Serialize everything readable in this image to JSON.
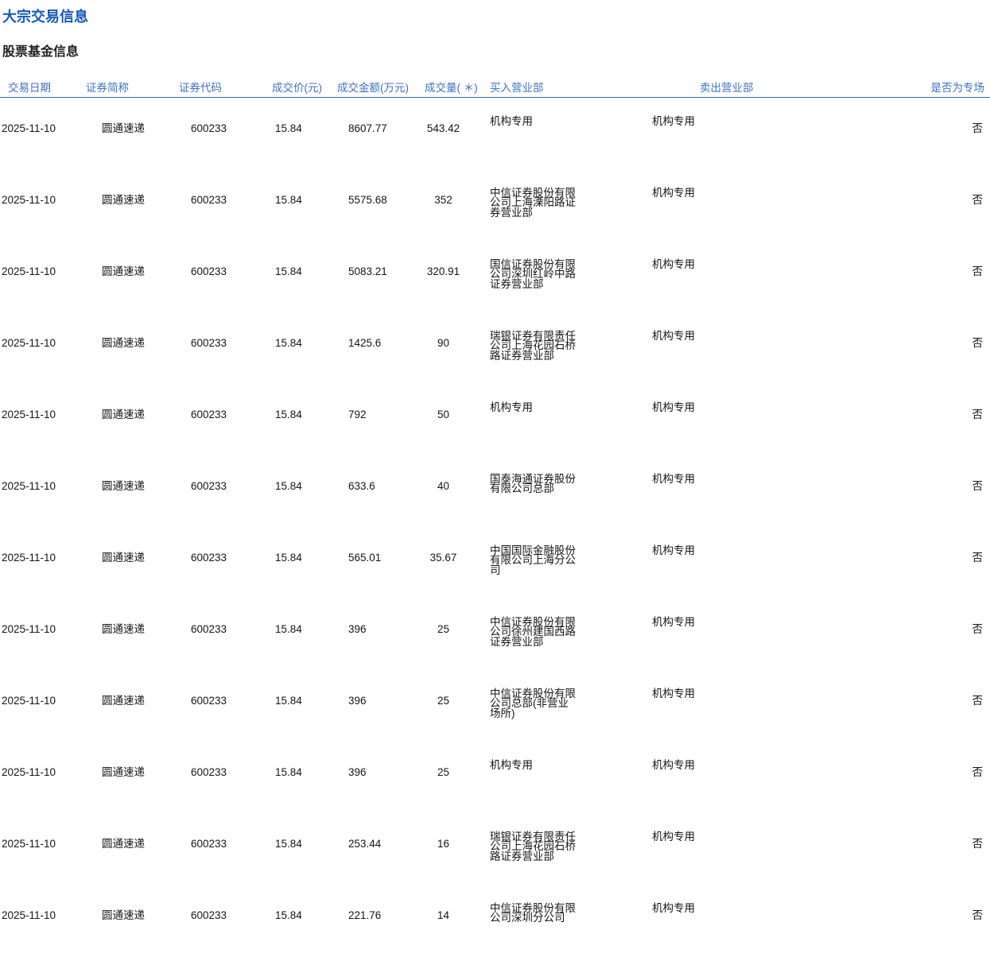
{
  "page": {
    "title": "大宗交易信息",
    "subtitle": "股票基金信息"
  },
  "colors": {
    "title_blue": "#1759b7",
    "header_blue": "#3e71c4",
    "line_blue": "#2e69bf",
    "body_text": "#151515"
  },
  "table": {
    "columns": [
      {
        "key": "date",
        "label": "交易日期"
      },
      {
        "key": "name",
        "label": "证券简称"
      },
      {
        "key": "code",
        "label": "证券代码"
      },
      {
        "key": "price",
        "label": "成交价(元)"
      },
      {
        "key": "amount",
        "label": "成交金额(万元)"
      },
      {
        "key": "volume",
        "label": "成交量( ＊)"
      },
      {
        "key": "buy_dept",
        "label": "买入营业部"
      },
      {
        "key": "sell_dept",
        "label": "卖出营业部"
      },
      {
        "key": "special",
        "label": "是否为专场"
      }
    ],
    "rows": [
      {
        "date": "2025-11-10",
        "name": "圆通速递",
        "code": "600233",
        "price": "15.84",
        "amount": "8607.77",
        "volume": "543.42",
        "buy_dept": "机构专用",
        "sell_dept": "机构专用",
        "special": "否"
      },
      {
        "date": "2025-11-10",
        "name": "圆通速递",
        "code": "600233",
        "price": "15.84",
        "amount": "5575.68",
        "volume": "352",
        "buy_dept": "中信证券股份有限公司上海溧阳路证券营业部",
        "sell_dept": "机构专用",
        "special": "否"
      },
      {
        "date": "2025-11-10",
        "name": "圆通速递",
        "code": "600233",
        "price": "15.84",
        "amount": "5083.21",
        "volume": "320.91",
        "buy_dept": "国信证券股份有限公司深圳红岭中路证券营业部",
        "sell_dept": "机构专用",
        "special": "否"
      },
      {
        "date": "2025-11-10",
        "name": "圆通速递",
        "code": "600233",
        "price": "15.84",
        "amount": "1425.6",
        "volume": "90",
        "buy_dept": "瑞银证券有限责任公司上海花园石桥路证券营业部",
        "sell_dept": "机构专用",
        "special": "否"
      },
      {
        "date": "2025-11-10",
        "name": "圆通速递",
        "code": "600233",
        "price": "15.84",
        "amount": "792",
        "volume": "50",
        "buy_dept": "机构专用",
        "sell_dept": "机构专用",
        "special": "否"
      },
      {
        "date": "2025-11-10",
        "name": "圆通速递",
        "code": "600233",
        "price": "15.84",
        "amount": "633.6",
        "volume": "40",
        "buy_dept": "国泰海通证券股份有限公司总部",
        "sell_dept": "机构专用",
        "special": "否"
      },
      {
        "date": "2025-11-10",
        "name": "圆通速递",
        "code": "600233",
        "price": "15.84",
        "amount": "565.01",
        "volume": "35.67",
        "buy_dept": "中国国际金融股份有限公司上海分公司",
        "sell_dept": "机构专用",
        "special": "否"
      },
      {
        "date": "2025-11-10",
        "name": "圆通速递",
        "code": "600233",
        "price": "15.84",
        "amount": "396",
        "volume": "25",
        "buy_dept": "中信证券股份有限公司徐州建国西路证券营业部",
        "sell_dept": "机构专用",
        "special": "否"
      },
      {
        "date": "2025-11-10",
        "name": "圆通速递",
        "code": "600233",
        "price": "15.84",
        "amount": "396",
        "volume": "25",
        "buy_dept": "中信证券股份有限公司总部(非营业场所)",
        "sell_dept": "机构专用",
        "special": "否"
      },
      {
        "date": "2025-11-10",
        "name": "圆通速递",
        "code": "600233",
        "price": "15.84",
        "amount": "396",
        "volume": "25",
        "buy_dept": "机构专用",
        "sell_dept": "机构专用",
        "special": "否"
      },
      {
        "date": "2025-11-10",
        "name": "圆通速递",
        "code": "600233",
        "price": "15.84",
        "amount": "253.44",
        "volume": "16",
        "buy_dept": "瑞银证券有限责任公司上海花园石桥路证券营业部",
        "sell_dept": "机构专用",
        "special": "否"
      },
      {
        "date": "2025-11-10",
        "name": "圆通速递",
        "code": "600233",
        "price": "15.84",
        "amount": "221.76",
        "volume": "14",
        "buy_dept": "中信证券股份有限公司深圳分公司",
        "sell_dept": "机构专用",
        "special": "否"
      }
    ]
  }
}
